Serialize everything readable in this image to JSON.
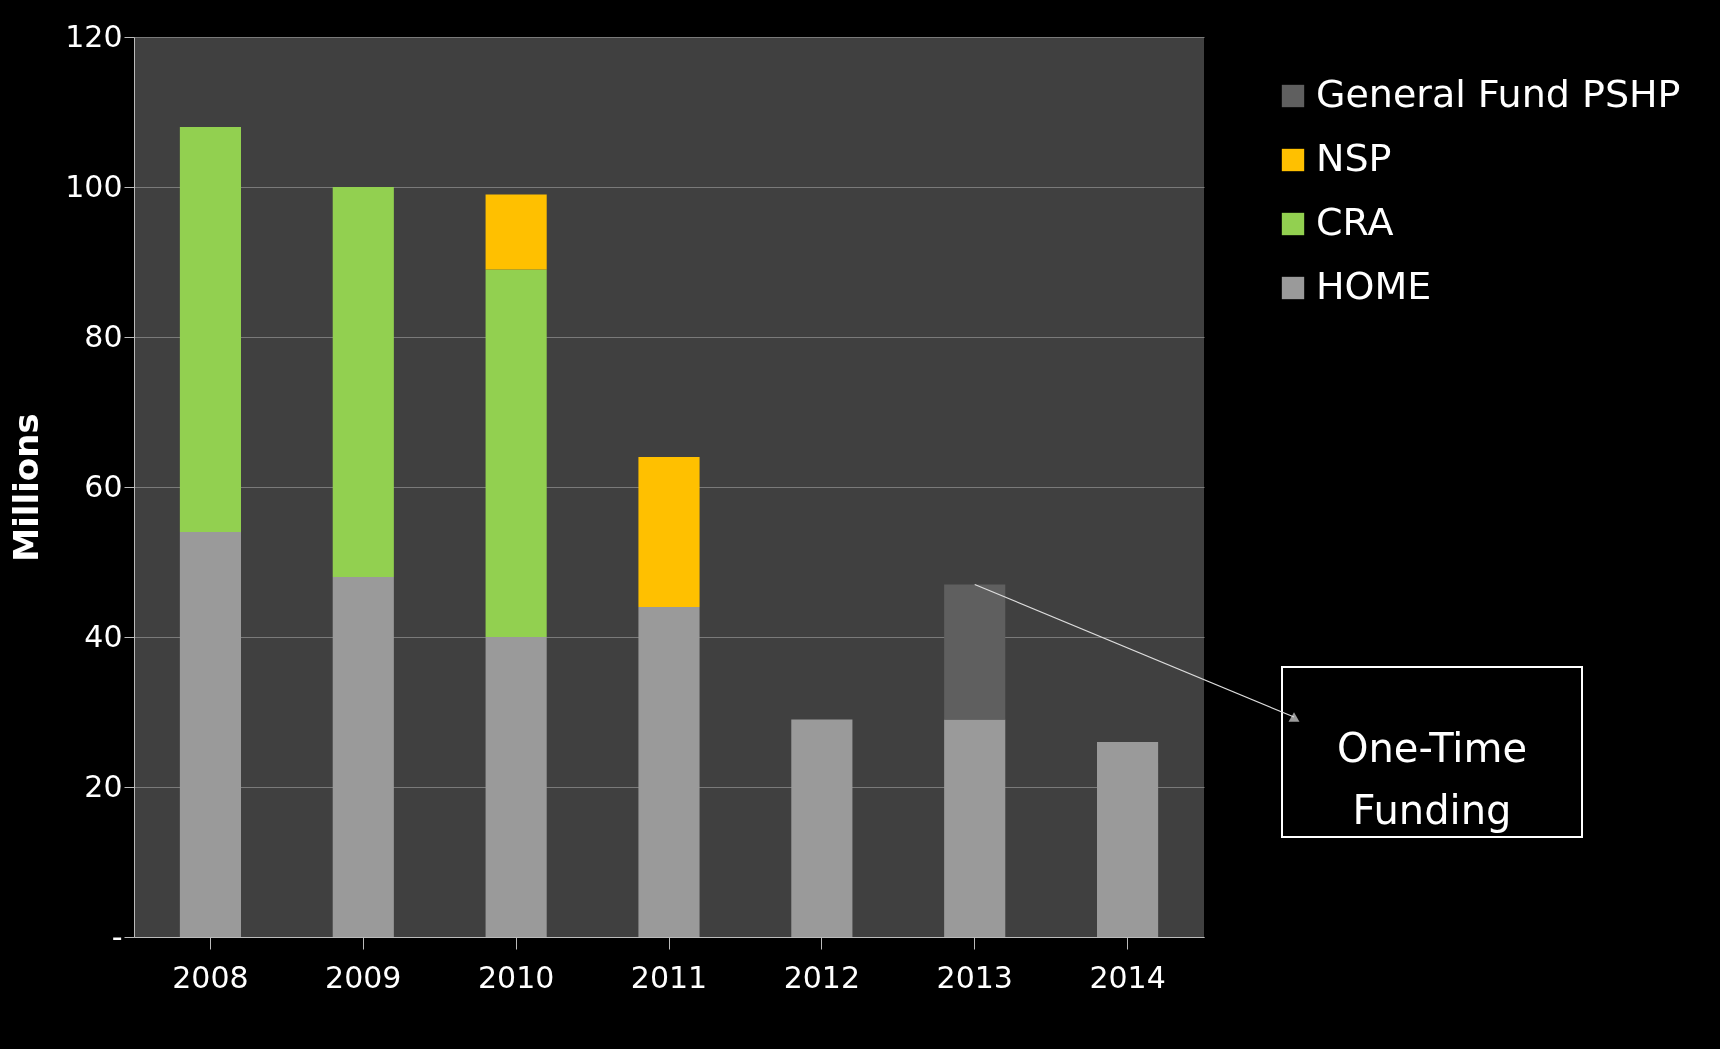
{
  "chart_data": {
    "type": "bar",
    "stacked": true,
    "ylabel": "Millions",
    "categories": [
      "2008",
      "2009",
      "2010",
      "2011",
      "2012",
      "2013",
      "2014"
    ],
    "series": [
      {
        "name": "HOME",
        "color": "#9a9a9a",
        "values": [
          54,
          48,
          40,
          44,
          29,
          29,
          26
        ]
      },
      {
        "name": "CRA",
        "color": "#92d050",
        "values": [
          54,
          52,
          49,
          null,
          null,
          null,
          null
        ]
      },
      {
        "name": "NSP",
        "color": "#ffc000",
        "values": [
          null,
          null,
          10,
          20,
          null,
          null,
          null
        ]
      },
      {
        "name": "General Fund PSHP",
        "color": "#5f5f5f",
        "values": [
          null,
          null,
          null,
          null,
          null,
          18,
          null
        ]
      }
    ],
    "ylim": [
      0,
      120
    ],
    "yticks": [
      {
        "value": 0,
        "label": "-"
      },
      20,
      40,
      60,
      80,
      100,
      120
    ],
    "grid": "y",
    "legend": "right",
    "annotations": [
      {
        "text": "One-Time Funding",
        "x": "2013",
        "y": 47
      }
    ]
  }
}
